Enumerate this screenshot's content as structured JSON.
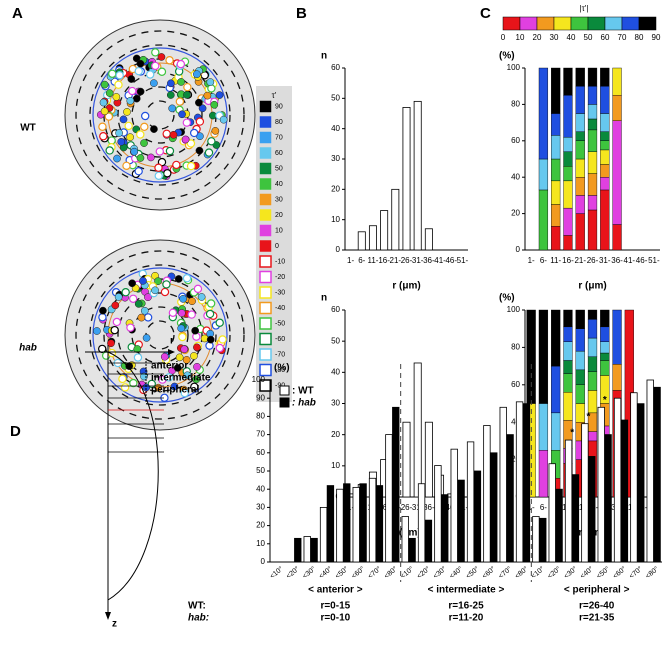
{
  "chart_data": [
    {
      "type": "disc-map",
      "panel": "A",
      "labels": [
        "WT",
        "hab"
      ],
      "colorbar": {
        "title": "τ'",
        "ticks": [
          90,
          80,
          70,
          60,
          50,
          40,
          30,
          20,
          10,
          0,
          -10,
          -20,
          -30,
          -40,
          -50,
          -60,
          -70,
          -80,
          -90
        ],
        "colors": [
          "#000000",
          "#1f4fe0",
          "#3aa0f0",
          "#66c8ee",
          "#0a8a3c",
          "#3ec43e",
          "#f29a1f",
          "#f5e61e",
          "#e040e0",
          "#e8141a",
          "#e8141a",
          "#e040e0",
          "#f5e61e",
          "#f29a1f",
          "#3ec43e",
          "#0a8a3c",
          "#66c8ee",
          "#1f4fe0",
          "#000000"
        ]
      }
    },
    {
      "type": "bar",
      "panel": "B",
      "ylabel": "n",
      "xlabel": "r (μm)",
      "color": "#ffffff",
      "categories": [
        "1-",
        "6-",
        "11-",
        "16-",
        "21-",
        "26-",
        "31-",
        "36-",
        "41-",
        "46-",
        "51-"
      ],
      "values": [
        0,
        6,
        8,
        13,
        20,
        47,
        49,
        7,
        0,
        0,
        0
      ],
      "ylim": [
        0,
        60
      ],
      "yticks": [
        0,
        10,
        20,
        30,
        40,
        50,
        60
      ]
    },
    {
      "type": "bar",
      "ylabel": "n",
      "xlabel": "r (μm)",
      "color": "#ffffff",
      "categories": [
        "1-",
        "6-",
        "11-",
        "16-",
        "21-",
        "26-",
        "31-",
        "36-",
        "41-",
        "46-",
        "51-"
      ],
      "values": [
        1,
        4,
        8,
        12,
        18,
        24,
        43,
        24,
        7,
        1,
        0
      ],
      "ylim": [
        0,
        60
      ],
      "yticks": [
        0,
        10,
        20,
        30,
        40,
        50,
        60
      ]
    },
    {
      "type": "stacked-bar",
      "panel": "C",
      "ylabel": "(%)",
      "xlabel": "r (μm)",
      "colorbar": {
        "title": "|τ'|",
        "ticks": [
          0,
          10,
          20,
          30,
          40,
          50,
          60,
          70,
          80,
          90
        ]
      },
      "categories": [
        "1-",
        "6-",
        "11-",
        "16-",
        "21-",
        "26-",
        "31-",
        "36-",
        "41-",
        "46-",
        "51-"
      ],
      "ylim": [
        0,
        100
      ],
      "yticks": [
        0,
        20,
        40,
        60,
        80,
        100
      ],
      "series": [
        {
          "color": "#e8141a",
          "values": [
            0,
            0,
            13,
            8,
            20,
            22,
            33,
            14,
            0,
            0,
            0
          ]
        },
        {
          "color": "#e040e0",
          "values": [
            0,
            0,
            0,
            15,
            10,
            8,
            7,
            57,
            0,
            0,
            0
          ]
        },
        {
          "color": "#f29a1f",
          "values": [
            0,
            0,
            12,
            0,
            10,
            12,
            7,
            14,
            0,
            0,
            0
          ]
        },
        {
          "color": "#f5e61e",
          "values": [
            0,
            0,
            13,
            15,
            10,
            12,
            8,
            15,
            0,
            0,
            0
          ]
        },
        {
          "color": "#3ec43e",
          "values": [
            0,
            33,
            12,
            8,
            10,
            12,
            5,
            0,
            0,
            0,
            0
          ]
        },
        {
          "color": "#0a8a3c",
          "values": [
            0,
            0,
            0,
            8,
            5,
            6,
            5,
            0,
            0,
            0,
            0
          ]
        },
        {
          "color": "#66c8ee",
          "values": [
            0,
            17,
            13,
            8,
            10,
            8,
            10,
            0,
            0,
            0,
            0
          ]
        },
        {
          "color": "#1f4fe0",
          "values": [
            0,
            50,
            12,
            23,
            15,
            10,
            15,
            0,
            0,
            0,
            0
          ]
        },
        {
          "color": "#000000",
          "values": [
            0,
            0,
            25,
            15,
            10,
            10,
            10,
            0,
            0,
            0,
            0
          ]
        }
      ]
    },
    {
      "type": "stacked-bar",
      "ylabel": "(%)",
      "xlabel": "r (μm)",
      "categories": [
        "1-",
        "6-",
        "11-",
        "16-",
        "21-",
        "26-",
        "31-",
        "36-",
        "41-",
        "46-",
        "51-"
      ],
      "ylim": [
        0,
        100
      ],
      "yticks": [
        0,
        20,
        40,
        60,
        80,
        100
      ],
      "series": [
        {
          "color": "#e8141a",
          "values": [
            0,
            0,
            10,
            18,
            20,
            30,
            32,
            57,
            100,
            0,
            0
          ]
        },
        {
          "color": "#e040e0",
          "values": [
            0,
            25,
            0,
            8,
            10,
            5,
            6,
            0,
            0,
            0,
            0
          ]
        },
        {
          "color": "#f29a1f",
          "values": [
            0,
            0,
            0,
            15,
            10,
            10,
            12,
            14,
            0,
            0,
            0
          ]
        },
        {
          "color": "#f5e61e",
          "values": [
            50,
            0,
            0,
            15,
            10,
            12,
            15,
            0,
            0,
            0,
            0
          ]
        },
        {
          "color": "#3ec43e",
          "values": [
            0,
            0,
            15,
            10,
            10,
            10,
            8,
            0,
            0,
            0,
            0
          ]
        },
        {
          "color": "#0a8a3c",
          "values": [
            0,
            0,
            0,
            7,
            8,
            8,
            4,
            0,
            0,
            0,
            0
          ]
        },
        {
          "color": "#66c8ee",
          "values": [
            0,
            25,
            20,
            10,
            10,
            10,
            6,
            0,
            0,
            0,
            0
          ]
        },
        {
          "color": "#1f4fe0",
          "values": [
            0,
            0,
            25,
            8,
            12,
            10,
            8,
            29,
            0,
            0,
            0
          ]
        },
        {
          "color": "#000000",
          "values": [
            50,
            50,
            30,
            9,
            10,
            5,
            9,
            0,
            0,
            0,
            0
          ]
        }
      ]
    },
    {
      "type": "grouped-bar",
      "panel": "D",
      "ylabel": "(%)",
      "ylim": [
        0,
        100
      ],
      "yticks": [
        0,
        10,
        20,
        30,
        40,
        50,
        60,
        70,
        80,
        90,
        100
      ],
      "schematic": {
        "axes": [
          "r",
          "z"
        ],
        "regions": [
          "anterior",
          "intermediate",
          "peripheral"
        ]
      },
      "legend": [
        {
          "name": ": WT",
          "color": "#ffffff"
        },
        {
          "name": ": hab",
          "color": "#000000"
        }
      ],
      "row_labels": [
        "WT:",
        "hab:"
      ],
      "groups": [
        {
          "label": "< anterior >",
          "ranges": [
            "r=0-15",
            "r=0-10"
          ],
          "categories": [
            "<10°",
            "<20°",
            "<30°",
            "<40°",
            "<50°",
            "<60°",
            "<70°",
            "<80°"
          ],
          "series": [
            {
              "values": [
                0,
                0,
                14,
                30,
                40,
                41,
                46,
                70
              ]
            },
            {
              "values": [
                0,
                13,
                13,
                42,
                43,
                43,
                42,
                85
              ]
            }
          ]
        },
        {
          "label": "< intermediate >",
          "ranges": [
            "r=16-25",
            "r=11-20"
          ],
          "categories": [
            "<10°",
            "<20°",
            "<30°",
            "<40°",
            "<50°",
            "<60°",
            "<70°",
            "<80°"
          ],
          "series": [
            {
              "values": [
                25,
                43,
                53,
                62,
                66,
                75,
                85,
                88
              ]
            },
            {
              "values": [
                13,
                23,
                37,
                45,
                50,
                60,
                70,
                87
              ]
            }
          ]
        },
        {
          "label": "< peripheral >",
          "ranges": [
            "r=26-40",
            "r=21-35"
          ],
          "categories": [
            "<10°",
            "<20°",
            "<30°",
            "<40°",
            "<50°",
            "<60°",
            "<70°",
            "<80°"
          ],
          "series": [
            {
              "values": [
                25,
                54,
                67,
                76,
                85,
                90,
                93,
                100
              ]
            },
            {
              "values": [
                24,
                40,
                48,
                58,
                70,
                78,
                87,
                96
              ]
            }
          ],
          "annotations": [
            {
              "text": "*",
              "category": "<30°"
            },
            {
              "text": "*",
              "category": "<40°"
            },
            {
              "text": "*",
              "category": "<50°"
            }
          ]
        }
      ]
    }
  ]
}
